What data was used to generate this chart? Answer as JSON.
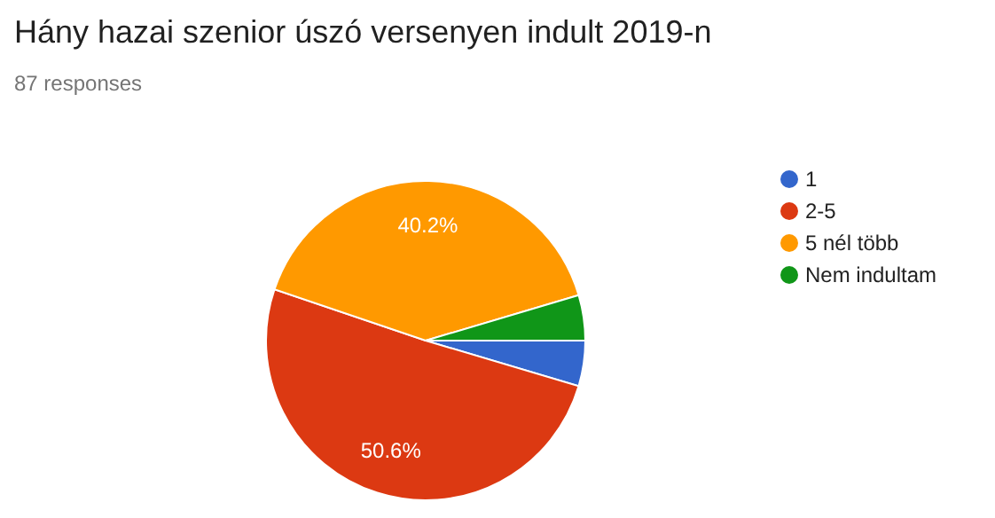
{
  "chart_data": {
    "type": "pie",
    "title": "Hány hazai szenior úszó versenyen indult 2019-n",
    "subtitle": "87 responses",
    "categories": [
      "1",
      "2-5",
      "5 nél több",
      "Nem indultam"
    ],
    "values": [
      4.6,
      50.6,
      40.2,
      4.6
    ],
    "colors": [
      "#3366cc",
      "#dc3912",
      "#ff9900",
      "#109618"
    ],
    "value_labels": [
      null,
      "50.6%",
      "40.2%",
      null
    ],
    "legend": "right"
  }
}
